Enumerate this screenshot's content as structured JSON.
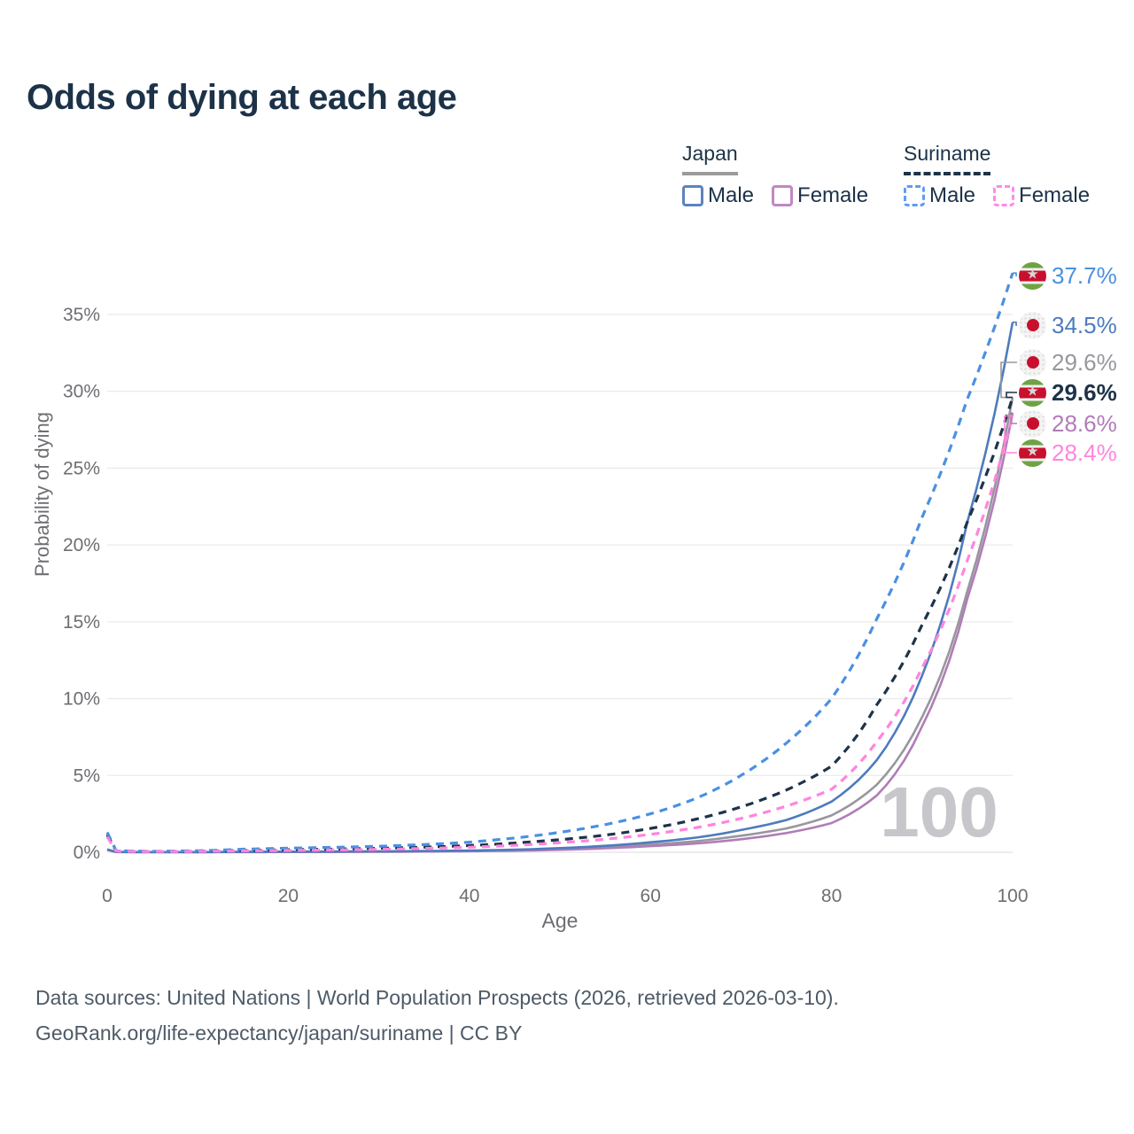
{
  "header": {
    "title": "Odds of dying at each age"
  },
  "legend": {
    "groups": [
      {
        "id": "japan",
        "label": "Japan",
        "line": {
          "color": "#9b9b9b",
          "dash": false
        },
        "items": [
          {
            "label": "Male",
            "color": "#5b83c0",
            "dash": false
          },
          {
            "label": "Female",
            "color": "#c287c2",
            "dash": false
          }
        ]
      },
      {
        "id": "suriname",
        "label": "Suriname",
        "line": {
          "color": "#1d3349",
          "dash": true
        },
        "items": [
          {
            "label": "Male",
            "color": "#5e9cf5",
            "dash": true
          },
          {
            "label": "Female",
            "color": "#ff8ae8",
            "dash": true
          }
        ]
      }
    ]
  },
  "chart_data": {
    "type": "line",
    "title": "Odds of dying at each age",
    "xlabel": "Age",
    "ylabel": "Probability of dying",
    "x_ticks": [
      0,
      20,
      40,
      60,
      80,
      100
    ],
    "y_ticks_pct": [
      0,
      5,
      10,
      15,
      20,
      25,
      30,
      35
    ],
    "xlim": [
      0,
      100
    ],
    "ylim": [
      0,
      38.5
    ],
    "grid": "horizontal-only",
    "age_marker": "100",
    "ages": [
      0,
      1,
      5,
      10,
      15,
      20,
      25,
      30,
      35,
      40,
      45,
      50,
      55,
      60,
      65,
      70,
      75,
      80,
      85,
      90,
      95,
      100
    ],
    "series": [
      {
        "id": "suriname-male",
        "name": "Suriname Male",
        "flag": "suriname",
        "color": "#4a90e2",
        "dash": true,
        "emphasis": false,
        "end_label": "37.7%",
        "values": [
          1.3,
          0.1,
          0.06,
          0.1,
          0.2,
          0.27,
          0.32,
          0.39,
          0.5,
          0.66,
          0.93,
          1.3,
          1.8,
          2.5,
          3.5,
          5.0,
          7.1,
          10.0,
          15.2,
          21.8,
          29.5,
          37.7
        ]
      },
      {
        "id": "japan-male",
        "name": "Japan Male",
        "flag": "japan",
        "color": "#4d7bbd",
        "dash": false,
        "emphasis": false,
        "end_label": "34.5%",
        "values": [
          0.19,
          0.02,
          0.01,
          0.01,
          0.03,
          0.04,
          0.05,
          0.06,
          0.08,
          0.11,
          0.17,
          0.27,
          0.42,
          0.65,
          0.95,
          1.45,
          2.1,
          3.3,
          6.0,
          11.5,
          21.5,
          34.5
        ]
      },
      {
        "id": "japan-combined",
        "name": "Japan",
        "flag": "japan",
        "color": "#97979d",
        "dash": false,
        "emphasis": false,
        "end_label": "29.6%",
        "values": [
          0.17,
          0.02,
          0.01,
          0.01,
          0.02,
          0.03,
          0.04,
          0.05,
          0.06,
          0.09,
          0.13,
          0.21,
          0.33,
          0.5,
          0.72,
          1.08,
          1.55,
          2.4,
          4.4,
          8.8,
          17.0,
          29.6
        ]
      },
      {
        "id": "suriname-combined",
        "name": "Suriname",
        "flag": "suriname",
        "color": "#1d3349",
        "dash": true,
        "emphasis": true,
        "end_label": "29.6%",
        "values": [
          1.15,
          0.08,
          0.05,
          0.07,
          0.12,
          0.17,
          0.21,
          0.26,
          0.33,
          0.44,
          0.6,
          0.82,
          1.12,
          1.55,
          2.15,
          2.95,
          4.05,
          5.6,
          9.6,
          14.8,
          21.5,
          29.6
        ]
      },
      {
        "id": "japan-female",
        "name": "Japan Female",
        "flag": "japan",
        "color": "#b17cb8",
        "dash": false,
        "emphasis": false,
        "end_label": "28.6%",
        "values": [
          0.16,
          0.01,
          0.01,
          0.01,
          0.01,
          0.02,
          0.02,
          0.03,
          0.05,
          0.07,
          0.1,
          0.16,
          0.26,
          0.4,
          0.57,
          0.85,
          1.25,
          1.9,
          3.7,
          8.2,
          16.5,
          28.6
        ]
      },
      {
        "id": "suriname-female",
        "name": "Suriname Female",
        "flag": "suriname",
        "color": "#ff85dd",
        "dash": true,
        "emphasis": false,
        "end_label": "28.4%",
        "values": [
          1.0,
          0.07,
          0.04,
          0.06,
          0.09,
          0.12,
          0.15,
          0.19,
          0.25,
          0.33,
          0.45,
          0.62,
          0.85,
          1.17,
          1.6,
          2.2,
          3.0,
          4.1,
          7.2,
          12.0,
          19.0,
          28.4
        ]
      }
    ]
  },
  "footer": {
    "line1": "Data sources: United Nations | World Population Prospects (2026, retrieved 2026-03-10).",
    "line2": "GeoRank.org/life-expectancy/japan/suriname | CC BY"
  }
}
